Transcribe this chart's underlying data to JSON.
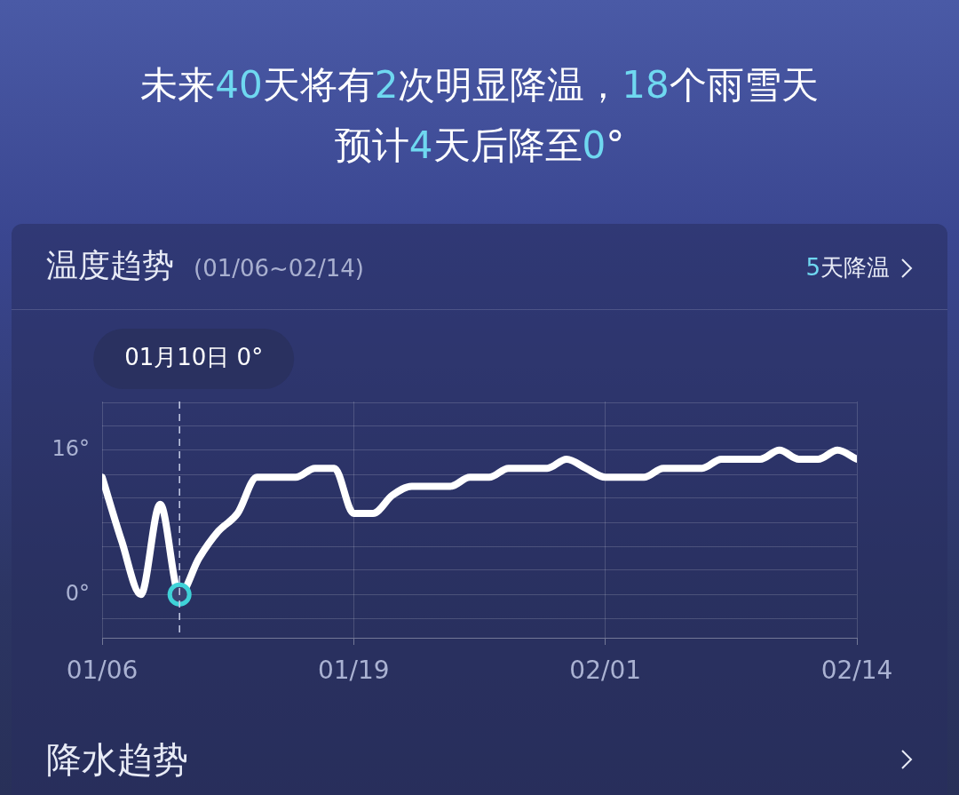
{
  "chart_data": {
    "type": "line",
    "title": "温度趋势",
    "subtitle": "(01/06~02/14)",
    "annotations": [
      "未来40天将有2次明显降温，18个雨雪天",
      "预计4天后降至0°",
      "5天降温",
      "降水趋势",
      "01月10日 0°"
    ],
    "x": [
      "--01-06",
      "--01-07",
      "--01-08",
      "--01-09",
      "--01-10",
      "--01-11",
      "--01-12",
      "--01-13",
      "--01-14",
      "--01-15",
      "--01-16",
      "--01-17",
      "--01-18",
      "--01-19",
      "--01-20",
      "--01-21",
      "--01-22",
      "--01-23",
      "--01-24",
      "--01-25",
      "--01-26",
      "--01-27",
      "--01-28",
      "--01-29",
      "--01-30",
      "--01-31",
      "--02-01",
      "--02-02",
      "--02-03",
      "--02-04",
      "--02-05",
      "--02-06",
      "--02-07",
      "--02-08",
      "--02-09",
      "--02-10",
      "--02-11",
      "--02-12",
      "--02-13",
      "--02-14"
    ],
    "series": [
      {
        "type": "scatter",
        "color": "#3fd2d8",
        "marker": "circle",
        "x": [
          "--01-10"
        ],
        "values": [
          0
        ]
      },
      {
        "color": "#ffffff",
        "values": [
          13,
          6,
          0,
          10,
          0,
          4,
          7,
          9,
          13,
          13,
          13,
          14,
          14,
          9,
          9,
          11,
          12,
          12,
          12,
          13,
          13,
          14,
          14,
          14,
          15,
          14,
          13,
          13,
          13,
          14,
          14,
          14,
          15,
          15,
          15,
          16,
          15,
          15,
          16,
          15
        ]
      }
    ],
    "xlim": [
      "--01-06",
      "--02-14"
    ],
    "xticks": [
      {
        "value": "--01-06",
        "label": "01/06"
      },
      {
        "value": "--01-19",
        "label": "01/19"
      },
      {
        "value": "--02-01",
        "label": "02/01"
      },
      {
        "value": "--02-14",
        "label": "02/14"
      }
    ],
    "ylim": [
      -4.8,
      21.4
    ],
    "yticks": [
      {
        "value": -2.7,
        "label": null
      },
      {
        "value": 0,
        "label": "0°"
      },
      {
        "value": 2.7,
        "label": null
      },
      {
        "value": 5.3,
        "label": null
      },
      {
        "value": 8,
        "label": null
      },
      {
        "value": 10.7,
        "label": null
      },
      {
        "value": 13.3,
        "label": null
      },
      {
        "value": 16,
        "label": "16°"
      },
      {
        "value": 18.7,
        "label": null
      },
      {
        "value": 21.3,
        "label": null
      }
    ],
    "ref_lines": [
      {
        "axis": "x",
        "value": "--01-10",
        "color": "#c8cfe8",
        "line_style": "dashed"
      }
    ],
    "grid": true,
    "legend": false,
    "marker": "none",
    "line_style": "solid"
  }
}
